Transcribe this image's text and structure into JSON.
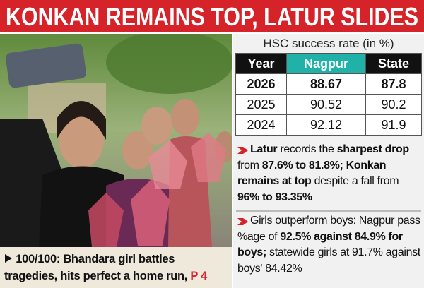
{
  "header": {
    "title": "KONKAN REMAINS TOP, LATUR SLIDES"
  },
  "photo": {
    "caption": "100/100: Bhandara girl battles tragedies, hits perfect a home run,",
    "page_ref": "P 4"
  },
  "table": {
    "title": "HSC success rate (in %)",
    "columns": [
      "Year",
      "Nagpur",
      "State"
    ],
    "rows": [
      [
        "2026",
        "88.67",
        "87.8"
      ],
      [
        "2025",
        "90.52",
        "90.2"
      ],
      [
        "2024",
        "92.12",
        "91.9"
      ]
    ]
  },
  "bullets": [
    [
      "Latur",
      "records the",
      "sharpest drop",
      "from",
      "87.6% to 81.8%;",
      "Konkan remains at top",
      "despite a fall from",
      "96% to 93.35%"
    ],
    [
      "Girls outperform boys: Nagpur pass %age of",
      "92.5% against 84.9% for boys;",
      "statewide girls at 91.7% against boys' 84.42%"
    ]
  ]
}
